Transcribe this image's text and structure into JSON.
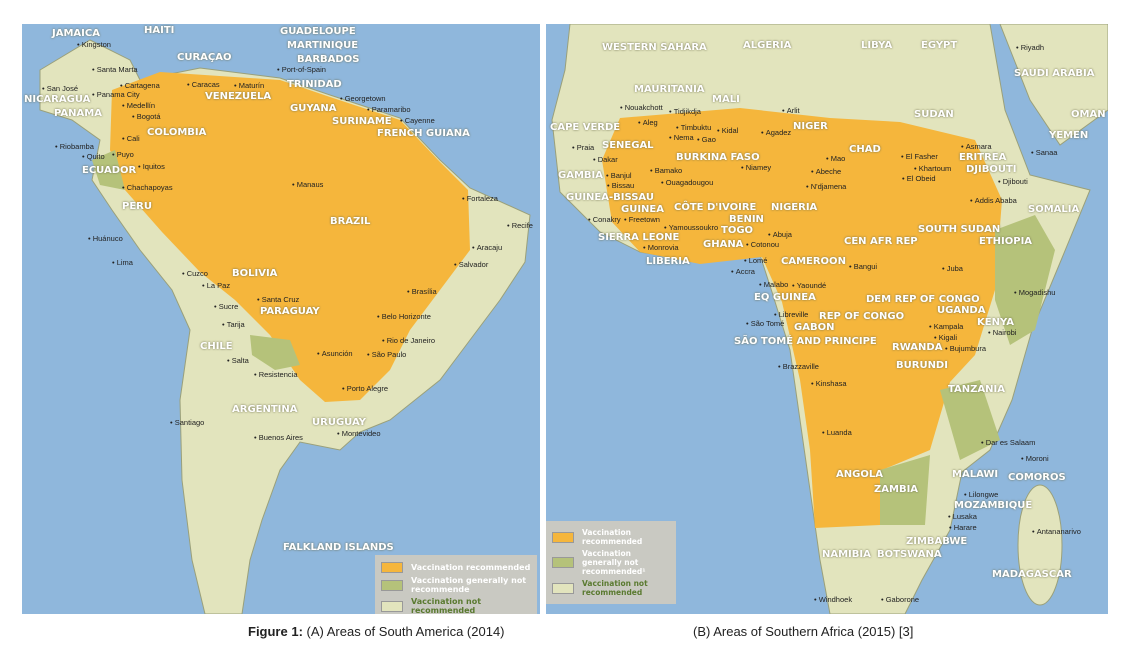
{
  "colors": {
    "ocean": "#8fb7dc",
    "recommended": "#f5b63c",
    "generally_not": "#b5c27a",
    "not_recommended": "#e2e4bd"
  },
  "panel_a": {
    "countries": [
      "JAMAICA",
      "HAITI",
      "GUADELOUPE",
      "MARTINIQUE",
      "BARBADOS",
      "CURAÇAO",
      "TRINIDAD",
      "NICARAGUA",
      "PANAMA",
      "VENEZUELA",
      "GUYANA",
      "SURINAME",
      "FRENCH GUIANA",
      "COLOMBIA",
      "ECUADOR",
      "PERU",
      "BRAZIL",
      "BOLIVIA",
      "PARAGUAY",
      "CHILE",
      "ARGENTINA",
      "URUGUAY",
      "FALKLAND ISLANDS"
    ],
    "cities": [
      "Kingston",
      "Santa Marta",
      "Cartagena",
      "Caracas",
      "Maturín",
      "Port-of-Spain",
      "San José",
      "Panama City",
      "Medellín",
      "Bogotá",
      "Georgetown",
      "Paramaribo",
      "Cayenne",
      "Cali",
      "Quito",
      "Riobamba",
      "Puyo",
      "Iquitos",
      "Manaus",
      "Chachapoyas",
      "Fortaleza",
      "Recife",
      "Huánuco",
      "Lima",
      "Cuzco",
      "Aracaju",
      "Salvador",
      "La Paz",
      "Sucre",
      "Santa Cruz",
      "Brasília",
      "Tarija",
      "Belo Horizonte",
      "Salta",
      "Asunción",
      "Rio de Janeiro",
      "São Paulo",
      "Resistencia",
      "Porto Alegre",
      "Santiago",
      "Montevideo",
      "Buenos Aires"
    ],
    "legend": [
      "Vaccination recommended",
      "Vaccination generally not recommende",
      "Vaccination not recommended"
    ]
  },
  "panel_b": {
    "countries": [
      "WESTERN SAHARA",
      "ALGERIA",
      "LIBYA",
      "EGYPT",
      "SAUDI ARABIA",
      "MAURITANIA",
      "MALI",
      "NIGER",
      "CAPE VERDE",
      "SENEGAL",
      "GAMBIA",
      "GUINEA-BISSAU",
      "GUINEA",
      "BURKINA FASO",
      "CHAD",
      "SUDAN",
      "ERITREA",
      "YEMEN",
      "OMAN",
      "DJIBOUTI",
      "SIERRA LEONE",
      "CÔTE D'IVOIRE",
      "BENIN",
      "NIGERIA",
      "TOGO",
      "GHANA",
      "LIBERIA",
      "CEN AFR REP",
      "SOUTH SUDAN",
      "ETHIOPIA",
      "SOMALIA",
      "CAMEROON",
      "EQ GUINEA",
      "DEM REP OF CONGO",
      "UGANDA",
      "KENYA",
      "SÃO TOMÉ AND PRINCIPE",
      "GABON",
      "REP OF CONGO",
      "RWANDA",
      "BURUNDI",
      "TANZANIA",
      "ANGOLA",
      "MALAWI",
      "ZAMBIA",
      "COMOROS",
      "MOZAMBIQUE",
      "ZIMBABWE",
      "NAMIBIA",
      "BOTSWANA",
      "MADAGASCAR"
    ],
    "cities": [
      "Riyadh",
      "Nouakchott",
      "Tidjikdja",
      "Aleg",
      "Timbuktu",
      "Kidal",
      "Arlit",
      "Nema",
      "Gao",
      "Agadez",
      "Praia",
      "Dakar",
      "Banjul",
      "Bissau",
      "Bamako",
      "Niamey",
      "Ouagadougou",
      "Mao",
      "Abeche",
      "El Fasher",
      "Khartoum",
      "El Obeid",
      "Asmara",
      "Sanaa",
      "Djibouti",
      "Conakry",
      "Freetown",
      "Monrovia",
      "Yamoussoukro",
      "N'djamena",
      "Addis Ababa",
      "Abuja",
      "Cotonou",
      "Lomé",
      "Accra",
      "Bangui",
      "Juba",
      "Malabo",
      "Yaoundé",
      "Mogadishu",
      "São Tomé",
      "Libreville",
      "Kampala",
      "Kigali",
      "Nairobi",
      "Bujumbura",
      "Brazzaville",
      "Kinshasa",
      "Dar es Salaam",
      "Luanda",
      "Moroni",
      "Lilongwe",
      "Lusaka",
      "Harare",
      "Antananarivo",
      "Windhoek",
      "Gaborone"
    ],
    "legend": [
      "Vaccination recommended",
      "Vaccination generally not recommended¹",
      "Vaccination not recommended"
    ]
  },
  "caption": {
    "figure_label": "Figure 1:",
    "a": "(A) Areas of South America (2014)",
    "b": "(B) Areas of Southern Africa (2015) [3]"
  }
}
